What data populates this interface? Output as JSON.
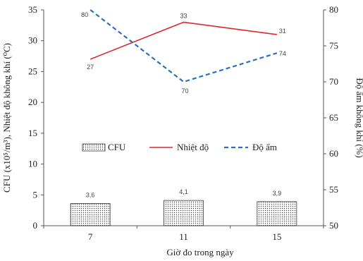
{
  "chart_data": {
    "type": "bar+line",
    "x_label": "Giờ đo trong ngày",
    "y_left_label": "CFU (x10⁵/m³), Nhiệt độ không khí (⁰C)",
    "y_right_label": "Độ ẩm không khí (%)",
    "categories": [
      "7",
      "11",
      "15"
    ],
    "y_left_ticks": [
      "0",
      "5",
      "10",
      "15",
      "20",
      "25",
      "30",
      "35"
    ],
    "y_right_ticks": [
      "50",
      "55",
      "60",
      "65",
      "70",
      "75",
      "80"
    ],
    "y_left_range": [
      0,
      35
    ],
    "y_right_range": [
      50,
      80
    ],
    "bar_fill_pattern": "dotted",
    "series": [
      {
        "name": "CFU",
        "kind": "bar",
        "axis": "left",
        "color": "#333333",
        "values": [
          3.6,
          4.1,
          3.9
        ],
        "labels": [
          "3,6",
          "4,1",
          "3,9"
        ]
      },
      {
        "name": "Nhiệt độ",
        "kind": "line",
        "axis": "left",
        "color": "#e0262a",
        "dash": "solid",
        "values": [
          27,
          33,
          31
        ],
        "labels": [
          "27",
          "33",
          "31"
        ]
      },
      {
        "name": "Độ ẩm",
        "kind": "line",
        "axis": "right",
        "color": "#2a6fbd",
        "dash": "dashed",
        "values": [
          80,
          70,
          74
        ],
        "labels": [
          "80",
          "70",
          "74"
        ]
      }
    ],
    "grid": false,
    "legend_position": "inside-middle"
  }
}
